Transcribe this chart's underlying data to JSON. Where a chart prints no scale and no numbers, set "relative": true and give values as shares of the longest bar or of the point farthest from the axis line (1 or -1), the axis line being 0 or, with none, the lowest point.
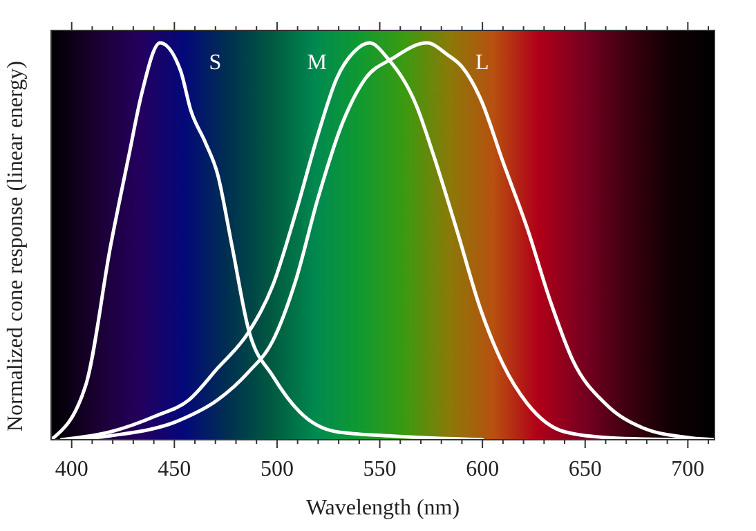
{
  "chart_data": {
    "type": "line",
    "relative": true,
    "xlabel": "Wavelength (nm)",
    "ylabel": "Normalized cone response (linear energy)",
    "xlim": [
      390,
      713
    ],
    "xticks": [
      400,
      {
        "value": 410,
        "label": null
      },
      {
        "value": 420,
        "label": null
      },
      {
        "value": 430,
        "label": null
      },
      {
        "value": 440,
        "label": null
      },
      450,
      {
        "value": 460,
        "label": null
      },
      {
        "value": 470,
        "label": null
      },
      {
        "value": 480,
        "label": null
      },
      {
        "value": 490,
        "label": null
      },
      500,
      {
        "value": 510,
        "label": null
      },
      {
        "value": 520,
        "label": null
      },
      {
        "value": 530,
        "label": null
      },
      {
        "value": 540,
        "label": null
      },
      550,
      {
        "value": 560,
        "label": null
      },
      {
        "value": 570,
        "label": null
      },
      {
        "value": 580,
        "label": null
      },
      {
        "value": 590,
        "label": null
      },
      600,
      {
        "value": 610,
        "label": null
      },
      {
        "value": 620,
        "label": null
      },
      {
        "value": 630,
        "label": null
      },
      {
        "value": 640,
        "label": null
      },
      650,
      {
        "value": 660,
        "label": null
      },
      {
        "value": 670,
        "label": null
      },
      {
        "value": 680,
        "label": null
      },
      {
        "value": 690,
        "label": null
      },
      700,
      {
        "value": 710,
        "label": null
      }
    ],
    "grid": false,
    "marker": "none",
    "line_style": "solid",
    "series": [
      {
        "name": "S",
        "color": "#ffffff",
        "x": [
          390,
          407,
          419,
          428,
          434,
          443,
          453,
          458,
          465,
          471,
          478,
          486,
          498,
          511,
          529,
          554,
          600
        ],
        "values": [
          0,
          0.14,
          0.49,
          0.72,
          0.87,
          1,
          0.93,
          0.83,
          0.75,
          0.67,
          0.49,
          0.28,
          0.16,
          0.07,
          0.02,
          0.01,
          0
        ]
      },
      {
        "name": "M",
        "color": "#ffffff",
        "x": [
          395,
          419,
          441,
          457,
          471,
          486,
          498,
          509,
          520,
          529,
          538,
          545,
          554,
          568,
          576,
          588,
          599,
          610,
          622,
          640,
          662,
          700
        ],
        "values": [
          0,
          0.02,
          0.06,
          0.1,
          0.18,
          0.27,
          0.39,
          0.57,
          0.77,
          0.91,
          0.98,
          1,
          0.96,
          0.84,
          0.72,
          0.52,
          0.33,
          0.19,
          0.09,
          0.02,
          0.005,
          0
        ]
      },
      {
        "name": "L",
        "color": "#ffffff",
        "x": [
          400,
          419,
          453,
          471,
          486,
          498,
          509,
          520,
          532,
          543,
          556,
          573,
          583,
          590,
          599,
          610,
          622,
          633,
          644,
          660,
          678,
          701,
          713
        ],
        "values": [
          0,
          0.01,
          0.05,
          0.1,
          0.17,
          0.25,
          0.4,
          0.61,
          0.8,
          0.91,
          0.96,
          1,
          0.97,
          0.94,
          0.86,
          0.7,
          0.53,
          0.35,
          0.2,
          0.09,
          0.03,
          0.005,
          0
        ]
      }
    ]
  }
}
